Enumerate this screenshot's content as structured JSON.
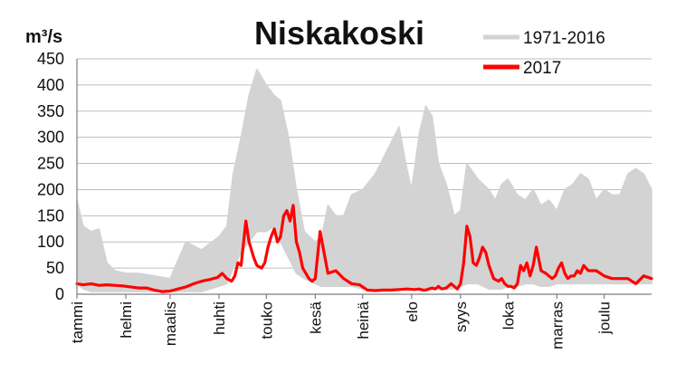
{
  "chart_data": {
    "type": "line",
    "title": "Niskakoski",
    "ylabel": "m³/s",
    "xlabel": "",
    "ylim": [
      0,
      450
    ],
    "yticks": [
      0,
      50,
      100,
      150,
      200,
      250,
      300,
      350,
      400,
      450
    ],
    "grid": "horizontal",
    "legend_position": "top-right",
    "month_labels": [
      "tammi",
      "helmi",
      "maalis",
      "huhti",
      "touko",
      "kesä",
      "heinä",
      "elo",
      "syys",
      "loka",
      "marras",
      "joulu"
    ],
    "x_unit": "day of year",
    "x_range": [
      1,
      365
    ],
    "colors": {
      "envelope": "#d3d3d3",
      "year2017": "#ff0000"
    },
    "series": [
      {
        "name": "1971-2016",
        "kind": "range",
        "x": [
          1,
          5,
          10,
          15,
          20,
          25,
          32,
          40,
          50,
          60,
          70,
          80,
          91,
          96,
          100,
          105,
          110,
          115,
          121,
          126,
          130,
          135,
          140,
          145,
          152,
          156,
          160,
          165,
          170,
          175,
          182,
          190,
          200,
          205,
          210,
          213,
          218,
          222,
          226,
          230,
          235,
          240,
          244,
          248,
          255,
          262,
          266,
          270,
          274,
          280,
          285,
          290,
          295,
          300,
          305,
          310,
          315,
          320,
          325,
          330,
          335,
          340,
          345,
          350,
          355,
          360,
          365
        ],
        "low": [
          20,
          10,
          5,
          5,
          5,
          5,
          5,
          5,
          5,
          5,
          5,
          5,
          15,
          20,
          50,
          80,
          100,
          120,
          120,
          130,
          100,
          70,
          40,
          30,
          20,
          15,
          15,
          15,
          15,
          15,
          10,
          10,
          10,
          10,
          10,
          10,
          10,
          10,
          10,
          10,
          10,
          10,
          15,
          20,
          20,
          10,
          10,
          10,
          15,
          15,
          20,
          20,
          15,
          15,
          20,
          20,
          20,
          20,
          20,
          20,
          20,
          20,
          20,
          20,
          20,
          20,
          20
        ],
        "high": [
          180,
          130,
          120,
          125,
          60,
          45,
          40,
          40,
          35,
          30,
          100,
          85,
          110,
          130,
          230,
          300,
          380,
          430,
          400,
          380,
          370,
          300,
          200,
          120,
          100,
          110,
          170,
          150,
          150,
          190,
          200,
          230,
          290,
          320,
          240,
          200,
          310,
          360,
          340,
          250,
          210,
          150,
          160,
          250,
          220,
          200,
          180,
          210,
          220,
          190,
          180,
          200,
          170,
          180,
          160,
          200,
          210,
          230,
          220,
          180,
          200,
          190,
          190,
          230,
          240,
          230,
          200
        ]
      },
      {
        "name": "2017",
        "x": [
          1,
          5,
          10,
          15,
          20,
          25,
          30,
          35,
          40,
          45,
          50,
          55,
          60,
          65,
          70,
          75,
          80,
          85,
          90,
          93,
          96,
          99,
          101,
          103,
          105,
          108,
          110,
          113,
          115,
          118,
          120,
          122,
          124,
          126,
          128,
          130,
          132,
          134,
          136,
          138,
          140,
          142,
          144,
          146,
          148,
          150,
          152,
          155,
          160,
          165,
          170,
          175,
          180,
          185,
          190,
          195,
          200,
          205,
          210,
          215,
          218,
          220,
          222,
          224,
          226,
          228,
          230,
          232,
          235,
          238,
          240,
          242,
          244,
          246,
          248,
          250,
          252,
          254,
          256,
          258,
          260,
          262,
          265,
          268,
          270,
          272,
          274,
          276,
          278,
          280,
          282,
          284,
          286,
          288,
          290,
          292,
          295,
          298,
          300,
          302,
          304,
          306,
          308,
          310,
          312,
          314,
          316,
          318,
          320,
          322,
          325,
          330,
          335,
          340,
          345,
          350,
          355,
          360,
          365
        ],
        "y": [
          20,
          18,
          20,
          17,
          18,
          17,
          16,
          14,
          12,
          12,
          8,
          5,
          6,
          10,
          14,
          20,
          25,
          28,
          32,
          40,
          30,
          25,
          35,
          60,
          55,
          140,
          100,
          70,
          55,
          50,
          60,
          90,
          110,
          125,
          100,
          110,
          150,
          160,
          140,
          170,
          100,
          80,
          50,
          40,
          30,
          25,
          30,
          120,
          40,
          45,
          30,
          20,
          18,
          8,
          7,
          8,
          8,
          9,
          10,
          9,
          10,
          8,
          8,
          10,
          12,
          10,
          15,
          10,
          12,
          20,
          15,
          10,
          20,
          60,
          130,
          110,
          60,
          55,
          70,
          90,
          80,
          55,
          30,
          25,
          30,
          20,
          15,
          15,
          12,
          20,
          55,
          45,
          60,
          35,
          55,
          90,
          45,
          40,
          35,
          30,
          35,
          50,
          60,
          40,
          30,
          35,
          35,
          45,
          40,
          55,
          45,
          45,
          35,
          30,
          30,
          30,
          20,
          35,
          30
        ]
      }
    ]
  }
}
